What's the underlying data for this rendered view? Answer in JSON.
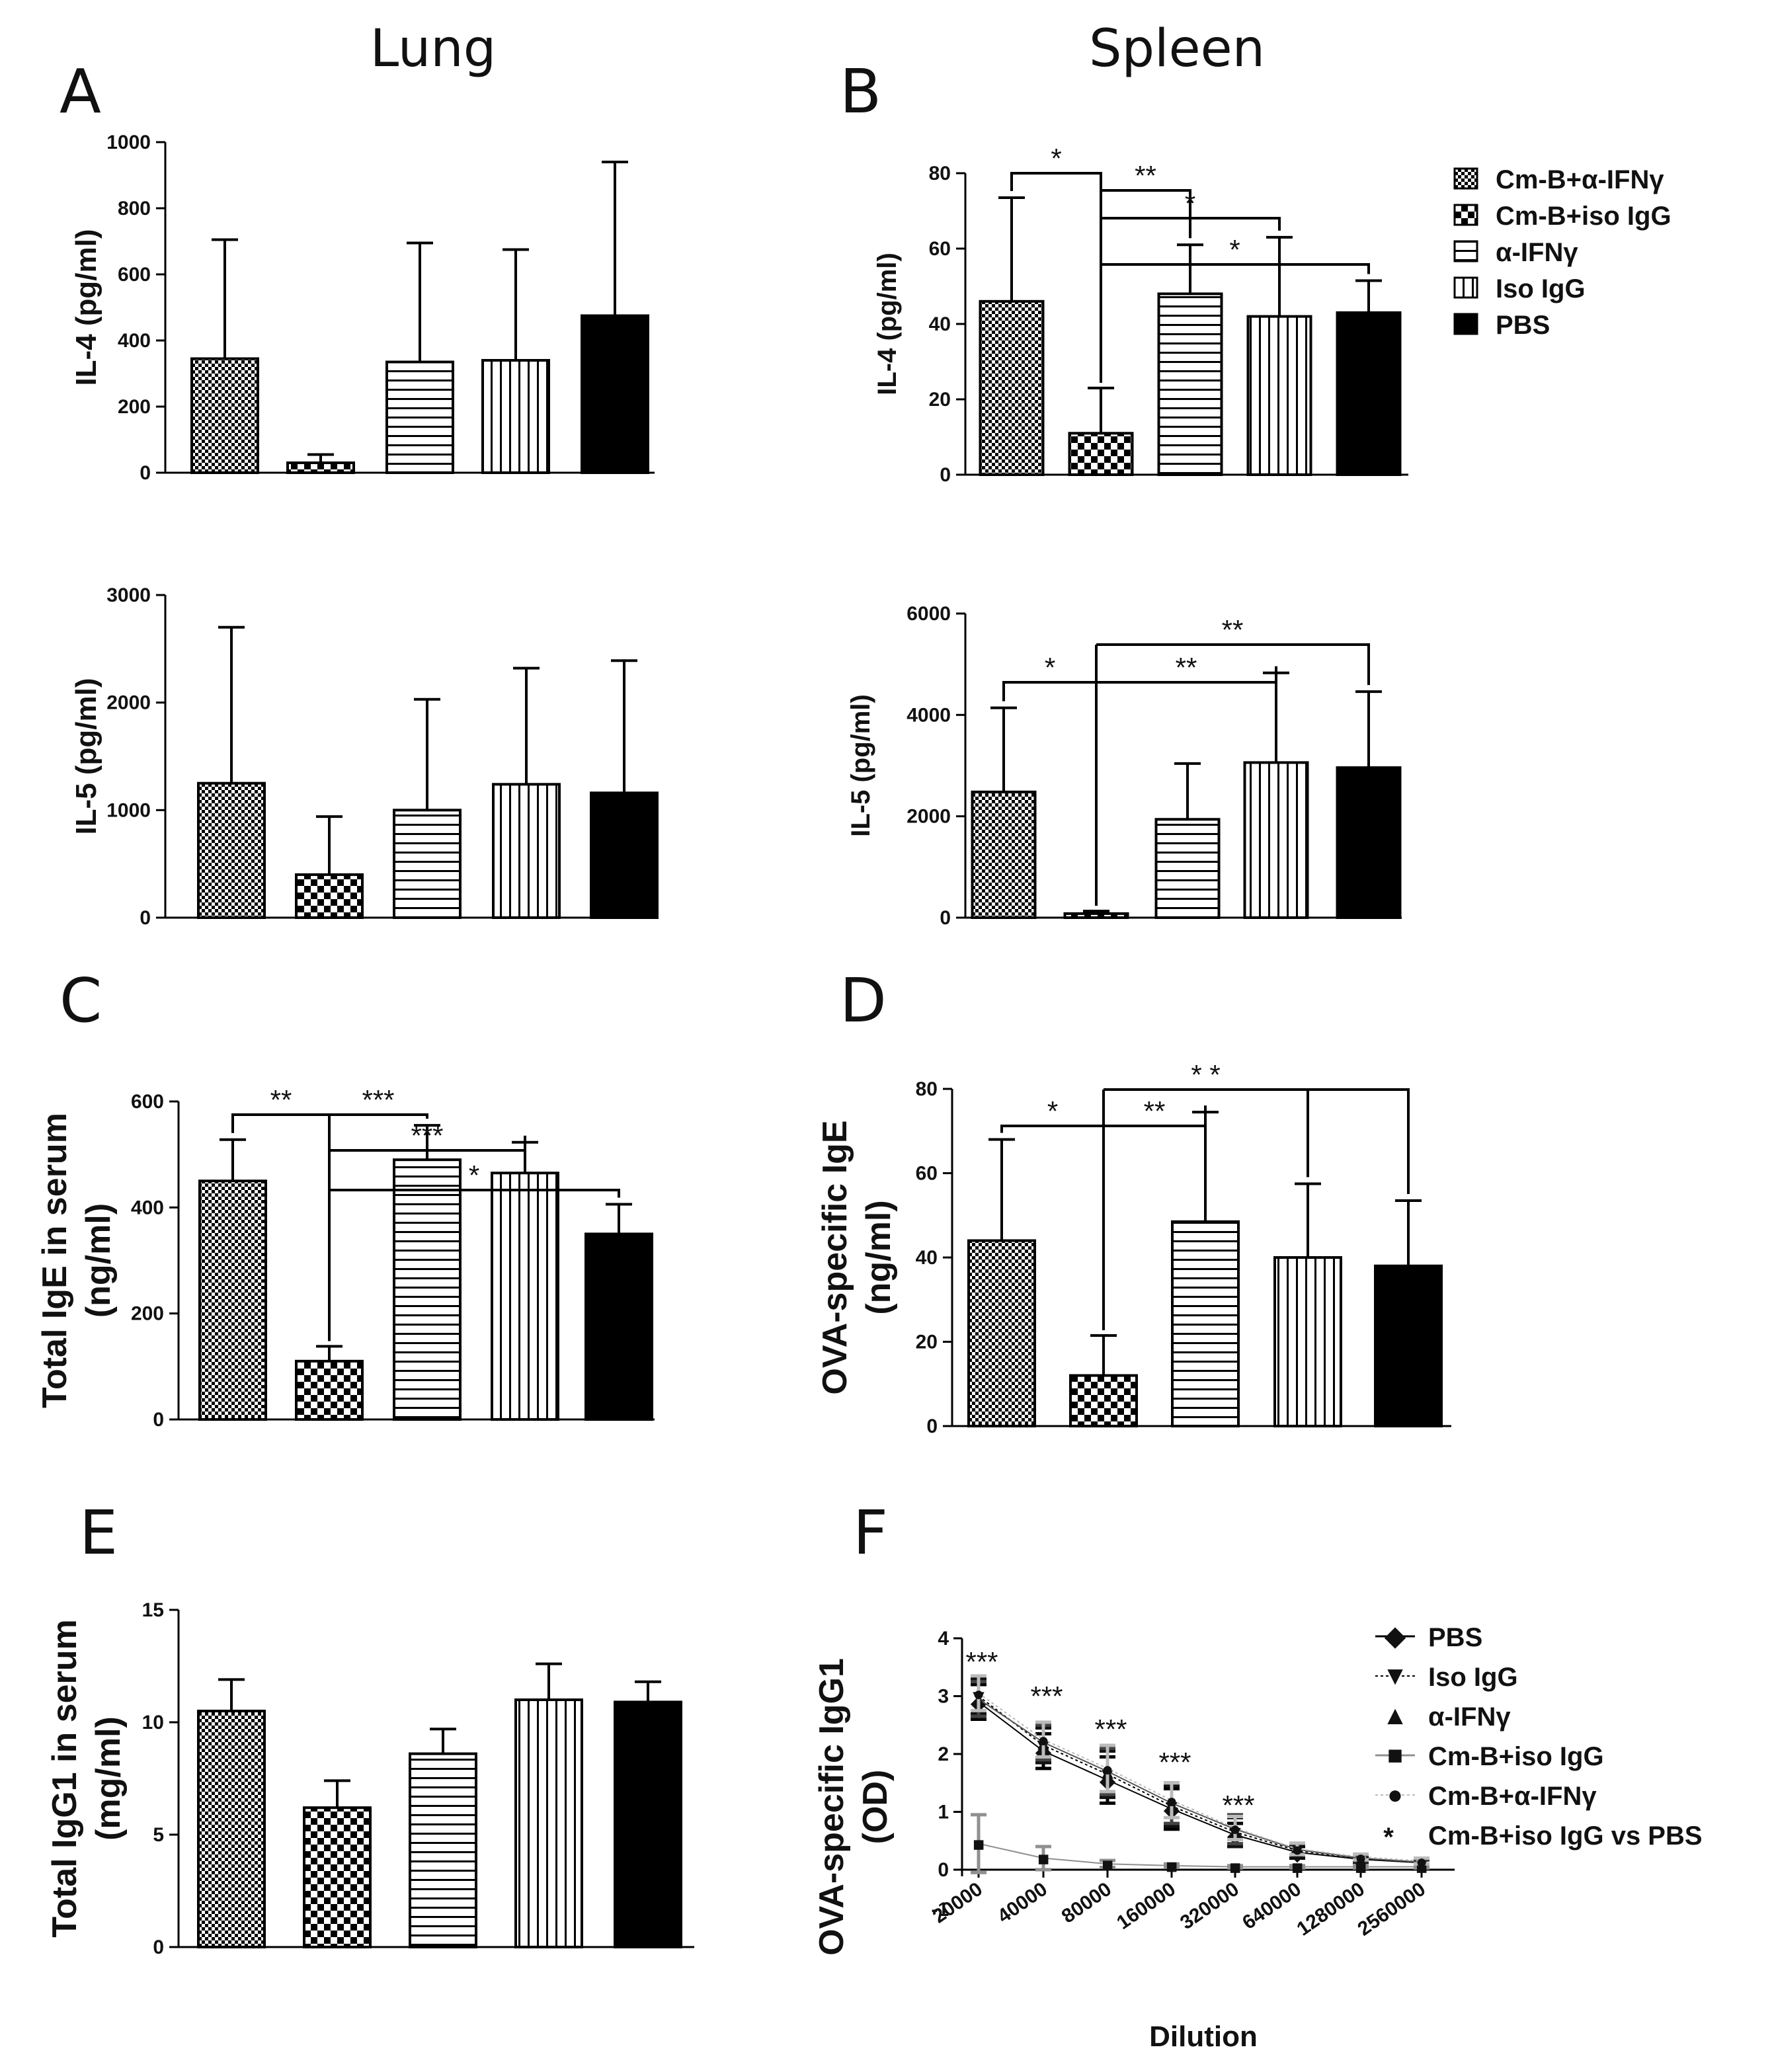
{
  "tissues": {
    "lung": "Lung",
    "spleen": "Spleen"
  },
  "panel_letters": [
    "A",
    "B",
    "C",
    "D",
    "E",
    "F"
  ],
  "series_colors": {
    "black": "#000000",
    "gray": "#909090",
    "light": "#bbbbbb",
    "dark": "#222222"
  },
  "groups": [
    {
      "name": "Cm-B+α-IFNγ",
      "pattern": "checker-small"
    },
    {
      "name": "Cm-B+iso IgG",
      "pattern": "checker-large"
    },
    {
      "name": "α-IFNγ",
      "pattern": "horizontal-lines"
    },
    {
      "name": "Iso IgG",
      "pattern": "vertical-lines"
    },
    {
      "name": "PBS",
      "pattern": "solid-black"
    }
  ],
  "chart_data": [
    {
      "id": "A-top",
      "type": "bar",
      "ylabel": "IL-4 (pg/ml)",
      "ylim": [
        0,
        1000
      ],
      "yticks": [
        "0",
        "200",
        "400",
        "600",
        "800",
        "1000"
      ],
      "values": [
        345,
        30,
        335,
        340,
        475
      ],
      "errors": [
        360,
        25,
        360,
        335,
        465
      ],
      "significance": []
    },
    {
      "id": "A-bottom",
      "type": "bar",
      "ylabel": "IL-5 (pg/ml)",
      "ylim": [
        0,
        3000
      ],
      "yticks": [
        "0",
        "1000",
        "2000",
        "3000"
      ],
      "values": [
        1250,
        400,
        1000,
        1240,
        1160
      ],
      "errors": [
        1450,
        540,
        1030,
        1080,
        1230
      ],
      "significance": []
    },
    {
      "id": "B-top",
      "type": "bar",
      "ylabel": "IL-4 (pg/ml)",
      "ylim": [
        0,
        80
      ],
      "yticks": [
        "0",
        "20",
        "40",
        "60",
        "80"
      ],
      "values": [
        46,
        11,
        48,
        42,
        43
      ],
      "errors": [
        27.5,
        12,
        13,
        21,
        8.5
      ],
      "significance": [
        {
          "from": 0,
          "to": 1,
          "label": "*"
        },
        {
          "from": 1,
          "to": 2,
          "label": "**"
        },
        {
          "from": 1,
          "to": 3,
          "label": "*"
        },
        {
          "from": 1,
          "to": 4,
          "label": "*"
        }
      ]
    },
    {
      "id": "B-bottom",
      "type": "bar",
      "ylabel": "IL-5 (pg/ml)",
      "ylim": [
        0,
        6000
      ],
      "yticks": [
        "0",
        "2000",
        "4000",
        "6000"
      ],
      "values": [
        2480,
        80,
        1940,
        3060,
        2960
      ],
      "errors": [
        1660,
        50,
        1100,
        1770,
        1500
      ],
      "significance": [
        {
          "from": 0,
          "to": 1,
          "label": "*"
        },
        {
          "from": 1,
          "to": 3,
          "label": "**"
        },
        {
          "from": 1,
          "to": 4,
          "label": "**"
        }
      ]
    },
    {
      "id": "C",
      "type": "bar",
      "ylabel": [
        "Total IgE in serum",
        "(ng/ml)"
      ],
      "ylim": [
        0,
        600
      ],
      "yticks": [
        "0",
        "200",
        "400",
        "600"
      ],
      "values": [
        450,
        110,
        490,
        465,
        350
      ],
      "errors": [
        78,
        28,
        65,
        58,
        56
      ],
      "significance": [
        {
          "from": 0,
          "to": 1,
          "label": "**"
        },
        {
          "from": 1,
          "to": 2,
          "label": "***"
        },
        {
          "from": 1,
          "to": 3,
          "label": "***"
        },
        {
          "from": 1,
          "to": 4,
          "label": "*"
        }
      ]
    },
    {
      "id": "D",
      "type": "bar",
      "ylabel": [
        "OVA-specific IgE",
        "(ng/ml)"
      ],
      "ylim": [
        0,
        80
      ],
      "yticks": [
        "0",
        "20",
        "40",
        "60",
        "80"
      ],
      "values": [
        44,
        12,
        48.5,
        40,
        38
      ],
      "errors": [
        24,
        9.5,
        26,
        17.5,
        15.5
      ],
      "significance": [
        {
          "from": 0,
          "to": 1,
          "label": "*"
        },
        {
          "from": 1,
          "to": 2,
          "label": "**"
        },
        {
          "from": 1,
          "to": 3,
          "label": "* *"
        },
        {
          "from": 1,
          "to": 4,
          "label": ""
        }
      ]
    },
    {
      "id": "E",
      "type": "bar",
      "ylabel": [
        "Total IgG1 in serum",
        "(mg/ml)"
      ],
      "ylim": [
        0,
        15
      ],
      "yticks": [
        "0",
        "5",
        "10",
        "15"
      ],
      "values": [
        10.5,
        6.2,
        8.6,
        11.0,
        10.9
      ],
      "errors": [
        1.4,
        1.2,
        1.1,
        1.6,
        0.9
      ],
      "significance": []
    },
    {
      "id": "F",
      "type": "line",
      "ylabel": [
        "OVA-specific IgG1",
        "(OD)"
      ],
      "xlabel": "Dilution",
      "ylim": [
        0,
        4
      ],
      "yticks": [
        "0",
        "1",
        "2",
        "3",
        "4"
      ],
      "y_extra_tick": "-1",
      "x": [
        "20000",
        "40000",
        "80000",
        "160000",
        "320000",
        "640000",
        "1280000",
        "2560000"
      ],
      "series": [
        {
          "name": "PBS",
          "marker": "◆",
          "values": [
            2.9,
            2.05,
            1.55,
            1.05,
            0.6,
            0.3,
            0.18,
            0.12
          ],
          "err": [
            0.3,
            0.3,
            0.4,
            0.35,
            0.2,
            0.1,
            0.05,
            0.05
          ]
        },
        {
          "name": "Iso IgG",
          "marker": "▼",
          "values": [
            3.0,
            2.15,
            1.65,
            1.1,
            0.65,
            0.33,
            0.2,
            0.14
          ],
          "err": [
            0.3,
            0.3,
            0.4,
            0.35,
            0.25,
            0.1,
            0.05,
            0.05
          ]
        },
        {
          "name": "α-IFNγ",
          "marker": "▲",
          "values": [
            2.95,
            2.2,
            1.7,
            1.15,
            0.7,
            0.35,
            0.2,
            0.13
          ],
          "err": [
            0.3,
            0.3,
            0.4,
            0.35,
            0.25,
            0.1,
            0.05,
            0.05
          ]
        },
        {
          "name": "Cm-B+iso IgG",
          "marker": "■",
          "values": [
            0.45,
            0.2,
            0.1,
            0.07,
            0.05,
            0.05,
            0.05,
            0.05
          ],
          "err": [
            0.5,
            0.2,
            0.06,
            0.03,
            0.02,
            0.02,
            0.02,
            0.02
          ]
        },
        {
          "name": "Cm-B+α-IFNγ",
          "marker": "●",
          "values": [
            3.05,
            2.25,
            1.75,
            1.2,
            0.72,
            0.36,
            0.22,
            0.15
          ],
          "err": [
            0.3,
            0.3,
            0.4,
            0.3,
            0.2,
            0.1,
            0.05,
            0.05
          ]
        }
      ],
      "significance": [
        "***",
        "***",
        "***",
        "***",
        "***"
      ],
      "legend_extra": {
        "marker": "*",
        "label": "Cm-B+iso IgG vs PBS"
      }
    }
  ]
}
